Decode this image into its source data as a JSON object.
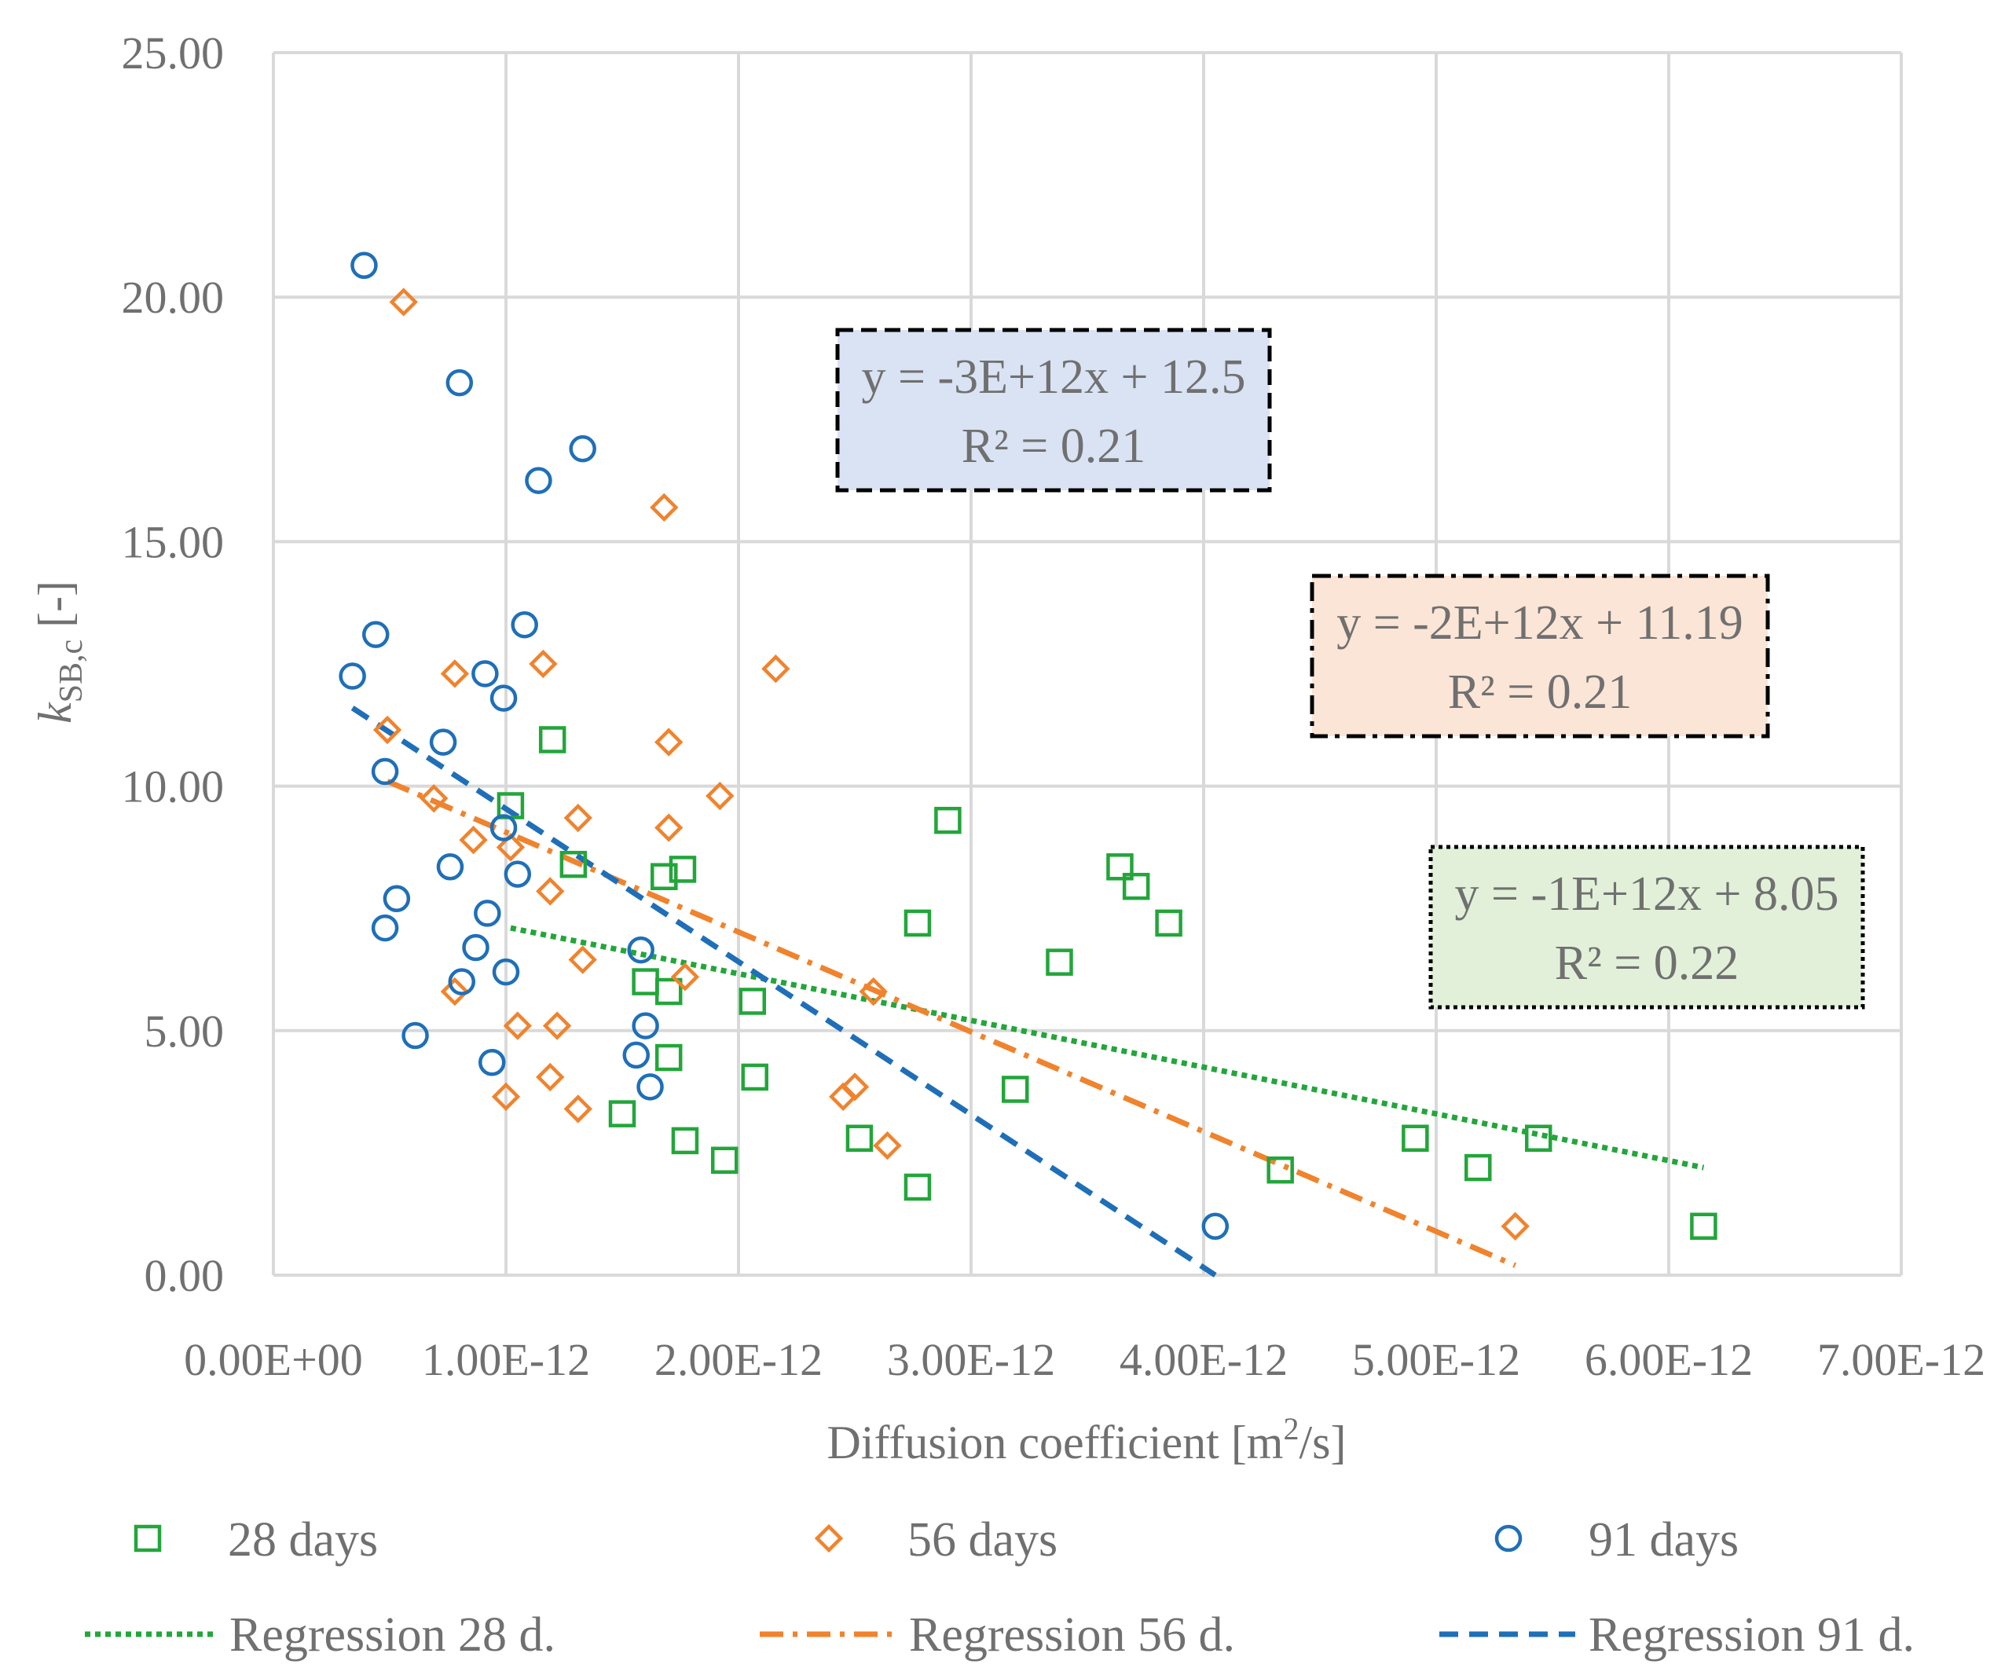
{
  "chart_data": {
    "type": "scatter",
    "xlabel": "Diffusion coefficient [m2/s]",
    "xlabel_main": "Diffusion coefficient [m",
    "xlabel_sup": "2",
    "xlabel_end": "/s]",
    "ylabel_k": "k",
    "ylabel_sub": "SB,c",
    "ylabel_end": " [-]",
    "xlim": [
      0,
      7e-12
    ],
    "ylim": [
      0,
      25
    ],
    "grid": true,
    "legend_position": "bottom",
    "x_ticks": [
      {
        "value": 0,
        "label": "0.00E+00"
      },
      {
        "value": 1e-12,
        "label": "1.00E-12"
      },
      {
        "value": 2e-12,
        "label": "2.00E-12"
      },
      {
        "value": 3e-12,
        "label": "3.00E-12"
      },
      {
        "value": 4e-12,
        "label": "4.00E-12"
      },
      {
        "value": 5e-12,
        "label": "5.00E-12"
      },
      {
        "value": 6e-12,
        "label": "6.00E-12"
      },
      {
        "value": 7e-12,
        "label": "7.00E-12"
      }
    ],
    "y_ticks": [
      {
        "value": 0,
        "label": "0.00"
      },
      {
        "value": 5,
        "label": "5.00"
      },
      {
        "value": 10,
        "label": "10.00"
      },
      {
        "value": 15,
        "label": "15.00"
      },
      {
        "value": 20,
        "label": "20.00"
      },
      {
        "value": 25,
        "label": "25.00"
      }
    ],
    "series": [
      {
        "name": "28 days",
        "marker": "square",
        "color": "#22A63A",
        "points": [
          [
            1.02e-12,
            9.6
          ],
          [
            1.2e-12,
            10.95
          ],
          [
            1.29e-12,
            8.4
          ],
          [
            1.68e-12,
            8.15
          ],
          [
            1.76e-12,
            8.3
          ],
          [
            2.9e-12,
            9.3
          ],
          [
            1.6e-12,
            6.0
          ],
          [
            1.7e-12,
            5.8
          ],
          [
            2.06e-12,
            5.6
          ],
          [
            1.7e-12,
            4.45
          ],
          [
            2.07e-12,
            4.05
          ],
          [
            1.5e-12,
            3.3
          ],
          [
            1.77e-12,
            2.75
          ],
          [
            1.94e-12,
            2.35
          ],
          [
            2.52e-12,
            2.8
          ],
          [
            2.77e-12,
            1.8
          ],
          [
            2.77e-12,
            7.2
          ],
          [
            3.19e-12,
            3.8
          ],
          [
            3.38e-12,
            6.4
          ],
          [
            3.64e-12,
            8.35
          ],
          [
            3.71e-12,
            7.95
          ],
          [
            3.85e-12,
            7.2
          ],
          [
            4.33e-12,
            2.15
          ],
          [
            4.91e-12,
            2.8
          ],
          [
            5.18e-12,
            2.2
          ],
          [
            5.44e-12,
            2.8
          ],
          [
            6.15e-12,
            1.0
          ]
        ]
      },
      {
        "name": "56 days",
        "marker": "diamond",
        "color": "#F0832D",
        "points": [
          [
            5.6e-13,
            19.9
          ],
          [
            1.68e-12,
            15.7
          ],
          [
            7.8e-13,
            12.3
          ],
          [
            1.16e-12,
            12.5
          ],
          [
            2.16e-12,
            12.4
          ],
          [
            4.9e-13,
            11.15
          ],
          [
            1.7e-12,
            10.9
          ],
          [
            6.9e-13,
            9.75
          ],
          [
            1.92e-12,
            9.8
          ],
          [
            1.31e-12,
            9.35
          ],
          [
            1.7e-12,
            9.15
          ],
          [
            8.6e-13,
            8.9
          ],
          [
            1.02e-12,
            8.75
          ],
          [
            1.19e-12,
            7.85
          ],
          [
            1.33e-12,
            6.45
          ],
          [
            1.77e-12,
            6.1
          ],
          [
            2.58e-12,
            5.8
          ],
          [
            7.8e-13,
            5.8
          ],
          [
            1.05e-12,
            5.1
          ],
          [
            1.22e-12,
            5.1
          ],
          [
            1.19e-12,
            4.05
          ],
          [
            1e-12,
            3.65
          ],
          [
            1.31e-12,
            3.4
          ],
          [
            2.45e-12,
            3.65
          ],
          [
            2.5e-12,
            3.85
          ],
          [
            2.64e-12,
            2.65
          ],
          [
            5.34e-12,
            1.0
          ]
        ]
      },
      {
        "name": "91 days",
        "marker": "circle",
        "color": "#1F6FB8",
        "points": [
          [
            3.9e-13,
            20.65
          ],
          [
            8e-13,
            18.25
          ],
          [
            1.33e-12,
            16.9
          ],
          [
            1.14e-12,
            16.25
          ],
          [
            4.4e-13,
            13.1
          ],
          [
            1.08e-12,
            13.3
          ],
          [
            3.4e-13,
            12.25
          ],
          [
            9.1e-13,
            12.3
          ],
          [
            9.9e-13,
            11.8
          ],
          [
            7.3e-13,
            10.9
          ],
          [
            4.8e-13,
            10.3
          ],
          [
            9.9e-13,
            9.15
          ],
          [
            7.6e-13,
            8.35
          ],
          [
            1.05e-12,
            8.2
          ],
          [
            5.3e-13,
            7.7
          ],
          [
            4.8e-13,
            7.1
          ],
          [
            9.2e-13,
            7.4
          ],
          [
            8.7e-13,
            6.7
          ],
          [
            1e-12,
            6.2
          ],
          [
            8.1e-13,
            6.0
          ],
          [
            1.58e-12,
            6.65
          ],
          [
            6.1e-13,
            4.9
          ],
          [
            1.6e-12,
            5.1
          ],
          [
            1.56e-12,
            4.5
          ],
          [
            9.4e-13,
            4.35
          ],
          [
            1.62e-12,
            3.85
          ],
          [
            4.05e-12,
            1.0
          ]
        ]
      }
    ],
    "regressions": [
      {
        "name": "Regression 28 d.",
        "color": "#22A63A",
        "style": "dotted",
        "x_range": [
          1.02e-12,
          6.15e-12
        ],
        "y_range": [
          7.1,
          2.2
        ],
        "equation": "y = -1E+12x + 8.05",
        "r2": "R² = 0.22",
        "box_fill": "#E2F0D9",
        "box_style": "dotted"
      },
      {
        "name": "Regression 56 d.",
        "color": "#F0832D",
        "style": "dashdot",
        "x_range": [
          4.9e-13,
          5.34e-12
        ],
        "y_range": [
          10.1,
          0.2
        ],
        "equation": "y = -2E+12x + 11.19",
        "r2": "R² = 0.21",
        "box_fill": "#FBE5D6",
        "box_style": "dashdot"
      },
      {
        "name": "Regression 91 d.",
        "color": "#1F6FB8",
        "style": "dashed",
        "x_range": [
          3.4e-13,
          4.05e-12
        ],
        "y_range": [
          11.6,
          0.0
        ],
        "equation": "y = -3E+12x + 12.5",
        "r2": "R² = 0.21",
        "box_fill": "#DAE3F3",
        "box_style": "dashed"
      }
    ],
    "legend": {
      "markers": [
        "28 days",
        "56 days",
        "91 days"
      ],
      "lines": [
        "Regression 28 d.",
        "Regression 56 d.",
        "Regression 91 d."
      ]
    }
  }
}
